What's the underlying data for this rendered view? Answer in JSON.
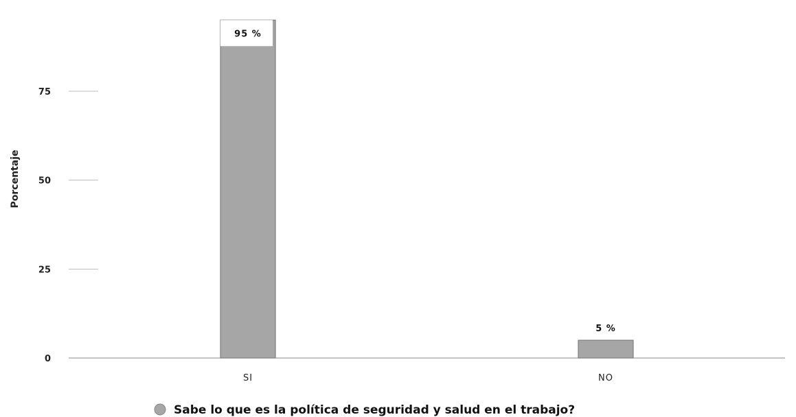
{
  "chart_data": {
    "type": "bar",
    "categories": [
      "SI",
      "NO"
    ],
    "series": [
      {
        "name": "Sabe lo que es la política de seguridad y salud en el trabajo?",
        "values": [
          95,
          5
        ],
        "color": "#a6a6a6"
      }
    ],
    "data_labels": [
      "95 %",
      "5 %"
    ],
    "ylabel": "Porcentaje",
    "yticks": [
      0,
      25,
      50,
      75
    ],
    "ylim": [
      0,
      95
    ],
    "grid": false,
    "legend_position": "bottom-center"
  }
}
